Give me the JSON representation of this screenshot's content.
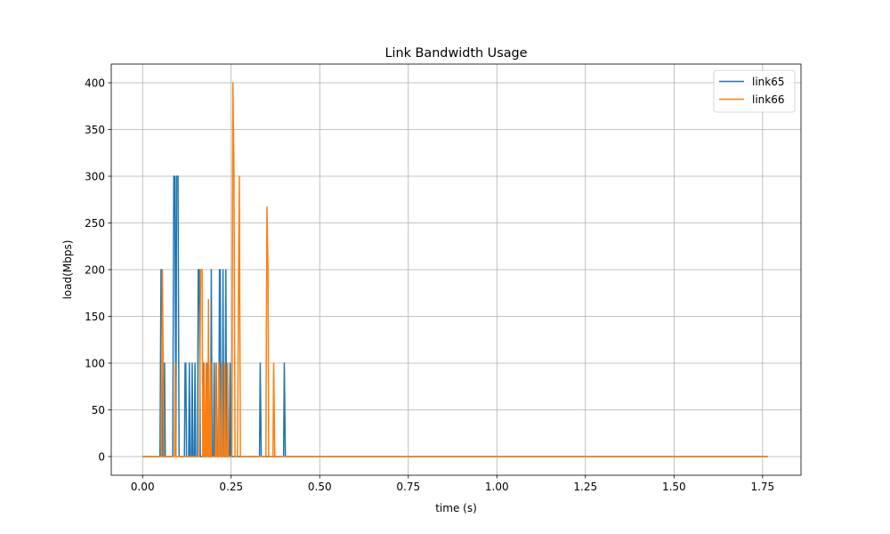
{
  "chart_data": {
    "type": "line",
    "title": "Link Bandwidth Usage",
    "xlabel": "time (s)",
    "ylabel": "load(Mbps)",
    "xlim": [
      -0.0885,
      1.8585
    ],
    "ylim": [
      -20,
      420
    ],
    "xticks": [
      0.0,
      0.25,
      0.5,
      0.75,
      1.0,
      1.25,
      1.5,
      1.75
    ],
    "xtick_labels": [
      "0.00",
      "0.25",
      "0.50",
      "0.75",
      "1.00",
      "1.25",
      "1.50",
      "1.75"
    ],
    "yticks": [
      0,
      50,
      100,
      150,
      200,
      250,
      300,
      350,
      400
    ],
    "ytick_labels": [
      "0",
      "50",
      "100",
      "150",
      "200",
      "250",
      "300",
      "350",
      "400"
    ],
    "grid": true,
    "legend_position": "top-right",
    "series": [
      {
        "name": "link65",
        "color": "#1f77b4",
        "points": [
          [
            0.0,
            0
          ],
          [
            0.049,
            0
          ],
          [
            0.052,
            200
          ],
          [
            0.054,
            200
          ],
          [
            0.057,
            0
          ],
          [
            0.06,
            0
          ],
          [
            0.062,
            100
          ],
          [
            0.064,
            0
          ],
          [
            0.085,
            0
          ],
          [
            0.088,
            300
          ],
          [
            0.091,
            300
          ],
          [
            0.094,
            0
          ],
          [
            0.096,
            300
          ],
          [
            0.1,
            300
          ],
          [
            0.103,
            0
          ],
          [
            0.118,
            0
          ],
          [
            0.12,
            100
          ],
          [
            0.122,
            100
          ],
          [
            0.124,
            0
          ],
          [
            0.13,
            0
          ],
          [
            0.132,
            100
          ],
          [
            0.134,
            0
          ],
          [
            0.138,
            0
          ],
          [
            0.14,
            100
          ],
          [
            0.142,
            0
          ],
          [
            0.146,
            0
          ],
          [
            0.148,
            100
          ],
          [
            0.15,
            0
          ],
          [
            0.155,
            0
          ],
          [
            0.157,
            200
          ],
          [
            0.16,
            200
          ],
          [
            0.163,
            0
          ],
          [
            0.17,
            0
          ],
          [
            0.172,
            100
          ],
          [
            0.174,
            0
          ],
          [
            0.18,
            0
          ],
          [
            0.182,
            100
          ],
          [
            0.184,
            0
          ],
          [
            0.192,
            0
          ],
          [
            0.194,
            200
          ],
          [
            0.196,
            0
          ],
          [
            0.2,
            0
          ],
          [
            0.202,
            100
          ],
          [
            0.204,
            0
          ],
          [
            0.206,
            0
          ],
          [
            0.208,
            100
          ],
          [
            0.21,
            0
          ],
          [
            0.215,
            0
          ],
          [
            0.217,
            200
          ],
          [
            0.219,
            200
          ],
          [
            0.221,
            0
          ],
          [
            0.225,
            0
          ],
          [
            0.227,
            200
          ],
          [
            0.229,
            0
          ],
          [
            0.233,
            0
          ],
          [
            0.235,
            200
          ],
          [
            0.237,
            0
          ],
          [
            0.245,
            0
          ],
          [
            0.247,
            100
          ],
          [
            0.249,
            0
          ],
          [
            0.33,
            0
          ],
          [
            0.332,
            100
          ],
          [
            0.335,
            0
          ],
          [
            0.398,
            0
          ],
          [
            0.4,
            100
          ],
          [
            0.403,
            0
          ],
          [
            1.765,
            0
          ]
        ]
      },
      {
        "name": "link66",
        "color": "#ff7f0e",
        "points": [
          [
            0.0,
            0
          ],
          [
            0.053,
            0
          ],
          [
            0.056,
            200
          ],
          [
            0.058,
            100
          ],
          [
            0.06,
            0
          ],
          [
            0.09,
            0
          ],
          [
            0.092,
            100
          ],
          [
            0.094,
            0
          ],
          [
            0.16,
            0
          ],
          [
            0.162,
            100
          ],
          [
            0.164,
            200
          ],
          [
            0.168,
            200
          ],
          [
            0.17,
            0
          ],
          [
            0.172,
            0
          ],
          [
            0.174,
            100
          ],
          [
            0.176,
            0
          ],
          [
            0.178,
            0
          ],
          [
            0.18,
            100
          ],
          [
            0.182,
            0
          ],
          [
            0.184,
            0
          ],
          [
            0.186,
            168
          ],
          [
            0.188,
            0
          ],
          [
            0.19,
            0
          ],
          [
            0.192,
            100
          ],
          [
            0.194,
            0
          ],
          [
            0.205,
            0
          ],
          [
            0.207,
            100
          ],
          [
            0.209,
            0
          ],
          [
            0.213,
            0
          ],
          [
            0.215,
            100
          ],
          [
            0.217,
            0
          ],
          [
            0.222,
            0
          ],
          [
            0.224,
            100
          ],
          [
            0.226,
            0
          ],
          [
            0.23,
            0
          ],
          [
            0.232,
            100
          ],
          [
            0.234,
            0
          ],
          [
            0.238,
            0
          ],
          [
            0.24,
            100
          ],
          [
            0.242,
            0
          ],
          [
            0.252,
            0
          ],
          [
            0.255,
            400
          ],
          [
            0.258,
            300
          ],
          [
            0.261,
            0
          ],
          [
            0.268,
            0
          ],
          [
            0.271,
            200
          ],
          [
            0.273,
            300
          ],
          [
            0.276,
            0
          ],
          [
            0.348,
            0
          ],
          [
            0.351,
            267
          ],
          [
            0.354,
            200
          ],
          [
            0.356,
            0
          ],
          [
            0.368,
            0
          ],
          [
            0.37,
            100
          ],
          [
            0.373,
            0
          ],
          [
            1.765,
            0
          ]
        ]
      }
    ]
  }
}
